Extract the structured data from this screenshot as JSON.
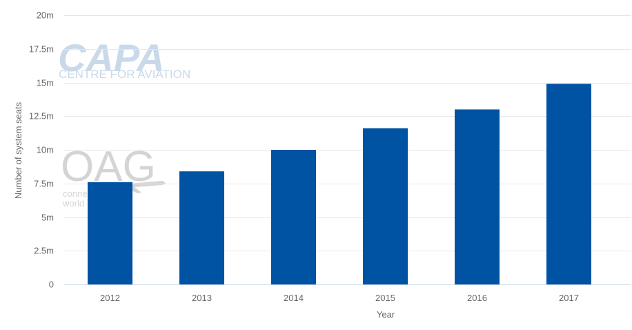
{
  "watermarks": {
    "capa_logo": "CAPA",
    "capa_subtitle": "CENTRE FOR AVIATION",
    "oag_logo": "OAG",
    "oag_tagline_1": "conne",
    "oag_tagline_2": "world"
  },
  "colors": {
    "bar": "#0052a3",
    "grid": "#e6e6e6",
    "axis": "#ccd6eb"
  },
  "chart_data": {
    "type": "bar",
    "title": "",
    "xlabel": "Year",
    "ylabel": "Number of system seats",
    "categories": [
      "2012",
      "2013",
      "2014",
      "2015",
      "2016",
      "2017"
    ],
    "values": [
      7.6,
      8.4,
      10.0,
      11.6,
      13.0,
      14.9
    ],
    "value_unit": "millions",
    "ylim": [
      0,
      20
    ],
    "yticks": [
      0,
      2.5,
      5,
      7.5,
      10,
      12.5,
      15,
      17.5,
      20
    ],
    "ytick_labels": [
      "0",
      "2.5m",
      "5m",
      "7.5m",
      "10m",
      "12.5m",
      "15m",
      "17.5m",
      "20m"
    ],
    "grid": true,
    "legend": "none"
  }
}
